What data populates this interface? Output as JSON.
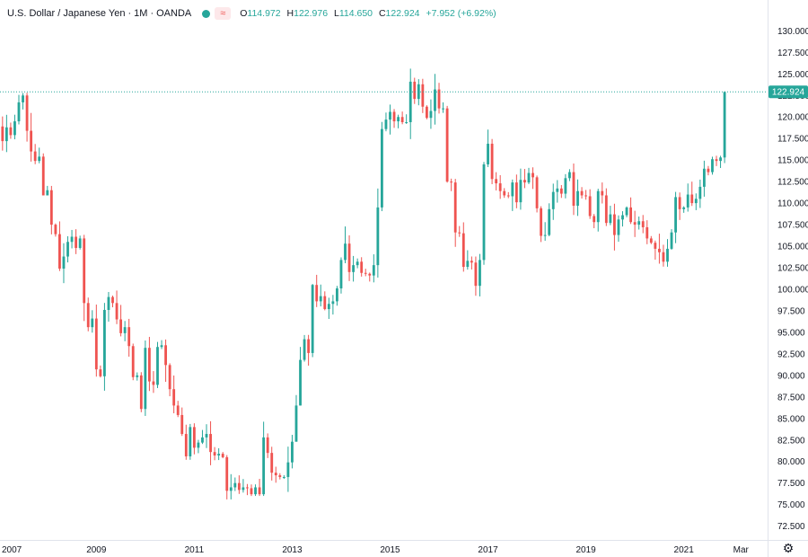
{
  "symbol": {
    "name": "U.S. Dollar / Japanese Yen",
    "interval": "1M",
    "source": "OANDA",
    "status_color": "#26a69a",
    "compare_icon": "wave-icon"
  },
  "ohlc": {
    "open_label": "O",
    "open": "114.972",
    "high_label": "H",
    "high": "122.976",
    "low_label": "L",
    "low": "114.650",
    "close_label": "C",
    "close": "122.924",
    "change": "+7.952 (+6.92%)"
  },
  "colors": {
    "up": "#26a69a",
    "down": "#ef5350",
    "text": "#131722",
    "axis_line": "#e0e3eb",
    "price_line": "#9aa0a6"
  },
  "settings_icon": "gear-icon",
  "chart_data": {
    "type": "candlestick",
    "title": "U.S. Dollar / Japanese Yen · 1M · OANDA",
    "y_ticks": [
      "72.500",
      "75.000",
      "77.500",
      "80.000",
      "82.500",
      "85.000",
      "87.500",
      "90.000",
      "92.500",
      "95.000",
      "97.500",
      "100.000",
      "102.500",
      "105.000",
      "107.500",
      "110.000",
      "112.500",
      "115.000",
      "117.500",
      "120.000",
      "122.500",
      "125.000",
      "127.500",
      "130.000"
    ],
    "x_ticks": [
      "2007",
      "2009",
      "2011",
      "2013",
      "2015",
      "2017",
      "2019",
      "2021",
      "Mar"
    ],
    "x_tick_months": [
      0,
      24,
      48,
      72,
      96,
      120,
      144,
      168,
      182
    ],
    "ylim": [
      71.0,
      131.5
    ],
    "xlim": [
      -0.5,
      187
    ],
    "last_price_label": "122.924",
    "last_price": 122.924,
    "start": "2006-12",
    "closes": [
      118.9,
      117.2,
      118.8,
      117.9,
      119.5,
      121.7,
      122.5,
      118.4,
      116.0,
      114.9,
      115.4,
      110.9,
      111.5,
      107.5,
      106.4,
      102.4,
      103.8,
      105.5,
      106.1,
      104.8,
      105.9,
      98.4,
      95.6,
      96.6,
      90.7,
      89.9,
      97.6,
      99.1,
      98.4,
      96.5,
      94.9,
      95.6,
      93.4,
      89.8,
      90.0,
      86.1,
      93.2,
      89.3,
      88.9,
      93.3,
      93.5,
      91.2,
      88.4,
      86.5,
      85.4,
      83.2,
      80.6,
      84.0,
      81.6,
      82.2,
      82.8,
      83.2,
      81.1,
      80.7,
      80.9,
      80.5,
      76.6,
      77.0,
      77.5,
      76.7,
      77.0,
      76.9,
      76.2,
      77.0,
      76.2,
      82.8,
      81.0,
      78.7,
      78.4,
      78.2,
      78.2,
      79.9,
      82.3,
      86.5,
      91.8,
      94.2,
      92.6,
      100.5,
      98.6,
      99.2,
      97.7,
      98.3,
      98.6,
      100.1,
      103.4,
      105.3,
      102.0,
      102.8,
      103.2,
      101.9,
      101.8,
      101.6,
      102.8,
      109.5,
      118.6,
      119.7,
      120.6,
      119.5,
      120.0,
      119.4,
      119.4,
      124.1,
      122.1,
      123.8,
      121.2,
      119.9,
      120.7,
      123.2,
      121.0,
      121.0,
      112.5,
      112.4,
      106.6,
      106.5,
      102.6,
      103.3,
      103.1,
      100.4,
      103.4,
      114.5,
      116.9,
      112.8,
      112.3,
      111.4,
      110.9,
      110.8,
      112.4,
      110.1,
      112.7,
      112.4,
      113.5,
      113.0,
      109.4,
      106.2,
      106.3,
      109.3,
      111.3,
      111.7,
      111.1,
      112.9,
      113.6,
      109.7,
      111.4,
      110.9,
      110.8,
      108.5,
      107.8,
      111.4,
      110.9,
      107.7,
      108.7,
      106.3,
      108.1,
      108.6,
      109.5,
      107.8,
      107.5,
      107.9,
      107.2,
      105.9,
      105.4,
      104.7,
      104.3,
      103.2,
      104.7,
      106.6,
      110.7,
      109.3,
      109.5,
      111.0,
      110.0,
      110.5,
      111.9,
      114.0,
      113.6,
      115.1,
      114.9,
      115.3,
      122.9
    ],
    "ranges": [
      {
        "year": 2007,
        "low": 112.0,
        "high": 124.1
      },
      {
        "year": 2008,
        "low": 87.1,
        "high": 112.0
      },
      {
        "year": 2009,
        "low": 84.8,
        "high": 101.4
      },
      {
        "year": 2010,
        "low": 80.2,
        "high": 94.9
      },
      {
        "year": 2011,
        "low": 75.6,
        "high": 85.5
      },
      {
        "year": 2012,
        "low": 76.0,
        "high": 86.8
      },
      {
        "year": 2013,
        "low": 86.5,
        "high": 105.4
      },
      {
        "year": 2014,
        "low": 100.8,
        "high": 121.8
      },
      {
        "year": 2015,
        "low": 115.8,
        "high": 125.9
      },
      {
        "year": 2016,
        "low": 99.0,
        "high": 121.7
      },
      {
        "year": 2017,
        "low": 107.3,
        "high": 118.6
      },
      {
        "year": 2018,
        "low": 104.6,
        "high": 114.6
      },
      {
        "year": 2019,
        "low": 104.5,
        "high": 112.4
      },
      {
        "year": 2020,
        "low": 101.2,
        "high": 112.2
      },
      {
        "year": 2021,
        "low": 102.6,
        "high": 115.5
      },
      {
        "year": 2022,
        "low": 113.5,
        "high": 123.0
      }
    ]
  }
}
